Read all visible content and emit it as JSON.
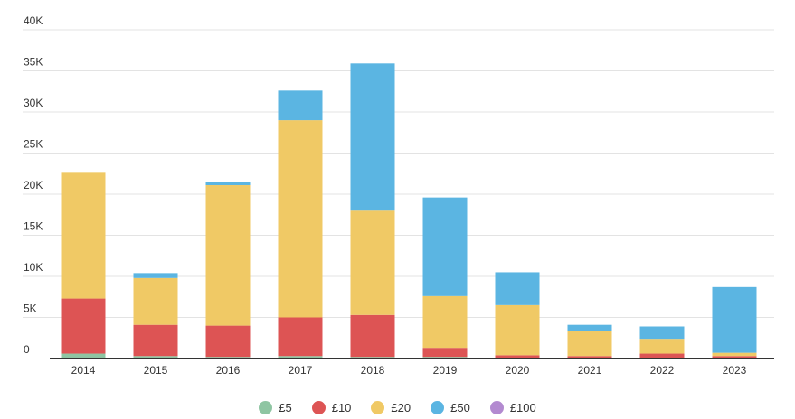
{
  "chart_data": {
    "type": "bar",
    "stacked": true,
    "categories": [
      "2014",
      "2015",
      "2016",
      "2017",
      "2018",
      "2019",
      "2020",
      "2021",
      "2022",
      "2023"
    ],
    "series": [
      {
        "name": "£5",
        "color": "#8ec5a2",
        "values": [
          600,
          300,
          200,
          300,
          200,
          200,
          100,
          100,
          100,
          100
        ]
      },
      {
        "name": "£10",
        "color": "#dd5454",
        "values": [
          6700,
          3800,
          3800,
          4700,
          5100,
          1100,
          300,
          200,
          500,
          200
        ]
      },
      {
        "name": "£20",
        "color": "#f0c965",
        "values": [
          15300,
          5700,
          17100,
          24000,
          12700,
          6300,
          6100,
          3100,
          1800,
          400
        ]
      },
      {
        "name": "£50",
        "color": "#5bb5e2",
        "values": [
          0,
          600,
          400,
          3600,
          17900,
          12000,
          4000,
          700,
          1500,
          8000
        ]
      },
      {
        "name": "£100",
        "color": "#b38ad0",
        "values": [
          0,
          0,
          0,
          0,
          0,
          0,
          0,
          0,
          0,
          0
        ]
      }
    ],
    "yticks": [
      "0",
      "5K",
      "10K",
      "15K",
      "20K",
      "25K",
      "30K",
      "35K",
      "40K"
    ],
    "ylim": [
      0,
      40000
    ],
    "grid": true,
    "legend_position": "bottom-center"
  }
}
